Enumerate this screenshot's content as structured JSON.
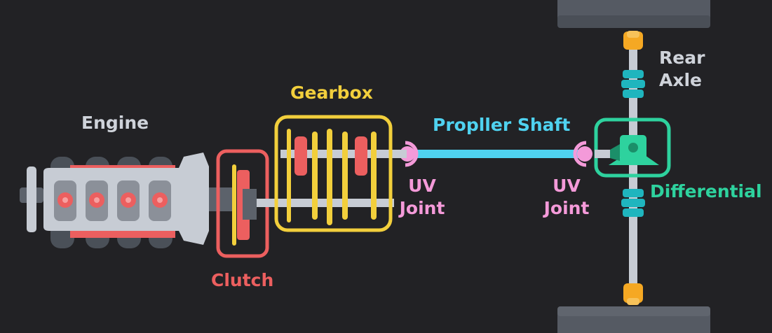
{
  "labels": {
    "engine": "Engine",
    "clutch": "Clutch",
    "gearbox": "Gearbox",
    "propeller_shaft": "Propller Shaft",
    "uv_joint_left_line1": "UV",
    "uv_joint_left_line2": "Joint",
    "uv_joint_right_line1": "UV",
    "uv_joint_right_line2": "Joint",
    "rear_axle_line1": "Rear",
    "rear_axle_line2": "Axle",
    "differential": "Differential"
  },
  "colors": {
    "background": "#222225",
    "engine_label": "#cfd3da",
    "clutch": "#ec5f5f",
    "gearbox": "#f2cf3c",
    "propeller_shaft": "#4fd2f0",
    "uv_joint": "#f49ad9",
    "rear_axle_label": "#cfd3da",
    "differential": "#2ed29e",
    "shaft_grey": "#c7ccd4",
    "wheel_grey": "#555a63",
    "cv_boot": "#1fb5be",
    "axle_end": "#f5a823"
  }
}
